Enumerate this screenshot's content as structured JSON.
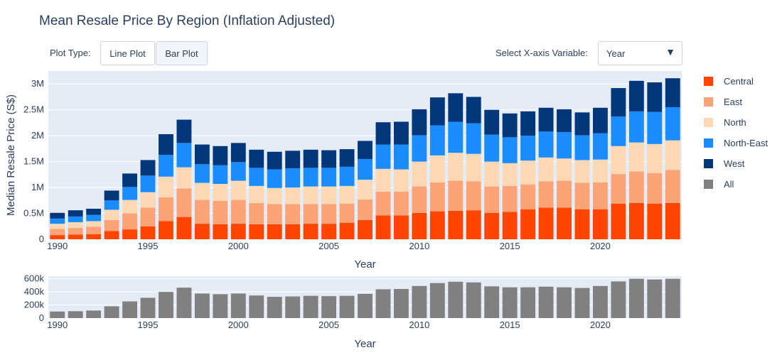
{
  "title": "Mean Resale Price By Region (Inflation Adjusted)",
  "controls": {
    "plot_type_label": "Plot Type:",
    "line_plot_label": "Line Plot",
    "bar_plot_label": "Bar Plot",
    "xvar_label": "Select X-axis Variable:",
    "xvar_value": "Year",
    "xvar_caret": "▼"
  },
  "colors": {
    "Central": "#ff4500",
    "East": "#fca377",
    "North": "#fdd8b4",
    "North-East": "#1a8cfd",
    "West": "#04367a",
    "All": "#808080",
    "plot_bg": "#e5ecf6"
  },
  "chart_data": [
    {
      "type": "bar",
      "stacked": true,
      "categories": [
        1990,
        1991,
        1992,
        1993,
        1994,
        1995,
        1996,
        1997,
        1998,
        1999,
        2000,
        2001,
        2002,
        2003,
        2004,
        2005,
        2006,
        2007,
        2008,
        2009,
        2010,
        2011,
        2012,
        2013,
        2014,
        2015,
        2016,
        2017,
        2018,
        2019,
        2020,
        2021,
        2022,
        2023,
        2024
      ],
      "series": [
        {
          "name": "Central",
          "values": [
            80000,
            90000,
            100000,
            160000,
            190000,
            250000,
            350000,
            430000,
            300000,
            290000,
            300000,
            290000,
            290000,
            290000,
            300000,
            300000,
            320000,
            370000,
            460000,
            460000,
            510000,
            540000,
            550000,
            560000,
            510000,
            530000,
            580000,
            610000,
            610000,
            580000,
            580000,
            690000,
            700000,
            690000,
            700000
          ]
        },
        {
          "name": "East",
          "values": [
            120000,
            130000,
            140000,
            210000,
            310000,
            360000,
            460000,
            550000,
            460000,
            450000,
            460000,
            410000,
            390000,
            390000,
            380000,
            380000,
            370000,
            400000,
            460000,
            460000,
            510000,
            560000,
            580000,
            560000,
            510000,
            500000,
            480000,
            510000,
            520000,
            510000,
            520000,
            570000,
            610000,
            590000,
            640000
          ]
        },
        {
          "name": "North",
          "values": [
            100000,
            110000,
            110000,
            200000,
            260000,
            300000,
            400000,
            410000,
            330000,
            330000,
            370000,
            330000,
            310000,
            320000,
            340000,
            340000,
            340000,
            380000,
            440000,
            430000,
            480000,
            520000,
            540000,
            530000,
            480000,
            440000,
            460000,
            460000,
            430000,
            440000,
            440000,
            540000,
            560000,
            560000,
            570000
          ]
        },
        {
          "name": "North-East",
          "values": [
            100000,
            110000,
            120000,
            180000,
            250000,
            320000,
            420000,
            470000,
            360000,
            360000,
            360000,
            350000,
            360000,
            370000,
            360000,
            360000,
            370000,
            400000,
            470000,
            480000,
            510000,
            580000,
            600000,
            590000,
            520000,
            500000,
            480000,
            500000,
            510000,
            480000,
            510000,
            570000,
            600000,
            620000,
            640000
          ]
        },
        {
          "name": "West",
          "values": [
            110000,
            120000,
            120000,
            190000,
            260000,
            300000,
            400000,
            450000,
            380000,
            370000,
            370000,
            350000,
            340000,
            340000,
            350000,
            340000,
            340000,
            350000,
            430000,
            440000,
            500000,
            540000,
            550000,
            510000,
            480000,
            460000,
            470000,
            460000,
            440000,
            440000,
            490000,
            550000,
            590000,
            570000,
            560000
          ]
        }
      ],
      "xlabel": "Year",
      "ylabel": "Median Resale Price (S$)",
      "ylim": [
        0,
        3250000
      ],
      "yticks": [
        0,
        500000,
        1000000,
        1500000,
        2000000,
        2500000,
        3000000
      ],
      "ytick_labels": [
        "0",
        "0.5M",
        "1M",
        "1.5M",
        "2M",
        "2.5M",
        "3M"
      ],
      "xticks": [
        1990,
        1995,
        2000,
        2005,
        2010,
        2015,
        2020
      ],
      "xtick_labels": [
        "1990",
        "1995",
        "2000",
        "2005",
        "2010",
        "2015",
        "2020"
      ],
      "xlim": [
        1989.5,
        2024.5
      ],
      "grid": true,
      "legend": "right"
    },
    {
      "type": "bar",
      "categories": [
        1990,
        1991,
        1992,
        1993,
        1994,
        1995,
        1996,
        1997,
        1998,
        1999,
        2000,
        2001,
        2002,
        2003,
        2004,
        2005,
        2006,
        2007,
        2008,
        2009,
        2010,
        2011,
        2012,
        2013,
        2014,
        2015,
        2016,
        2017,
        2018,
        2019,
        2020,
        2021,
        2022,
        2023,
        2024
      ],
      "series": [
        {
          "name": "All",
          "values": [
            100000,
            105000,
            115000,
            180000,
            255000,
            310000,
            400000,
            465000,
            375000,
            365000,
            375000,
            345000,
            325000,
            330000,
            340000,
            335000,
            340000,
            370000,
            440000,
            445000,
            490000,
            535000,
            555000,
            545000,
            485000,
            470000,
            470000,
            480000,
            470000,
            460000,
            490000,
            560000,
            600000,
            590000,
            600000
          ]
        }
      ],
      "xlabel": "Year",
      "ylabel": "",
      "ylim": [
        0,
        640000
      ],
      "yticks": [
        0,
        200000,
        400000,
        600000
      ],
      "ytick_labels": [
        "0",
        "200k",
        "400k",
        "600k"
      ],
      "xticks": [
        1990,
        1995,
        2000,
        2005,
        2010,
        2015,
        2020
      ],
      "xtick_labels": [
        "1990",
        "1995",
        "2000",
        "2005",
        "2010",
        "2015",
        "2020"
      ],
      "xlim": [
        1989.5,
        2024.5
      ],
      "grid": true
    }
  ],
  "legend": [
    "Central",
    "East",
    "North",
    "North-East",
    "West",
    "All"
  ]
}
